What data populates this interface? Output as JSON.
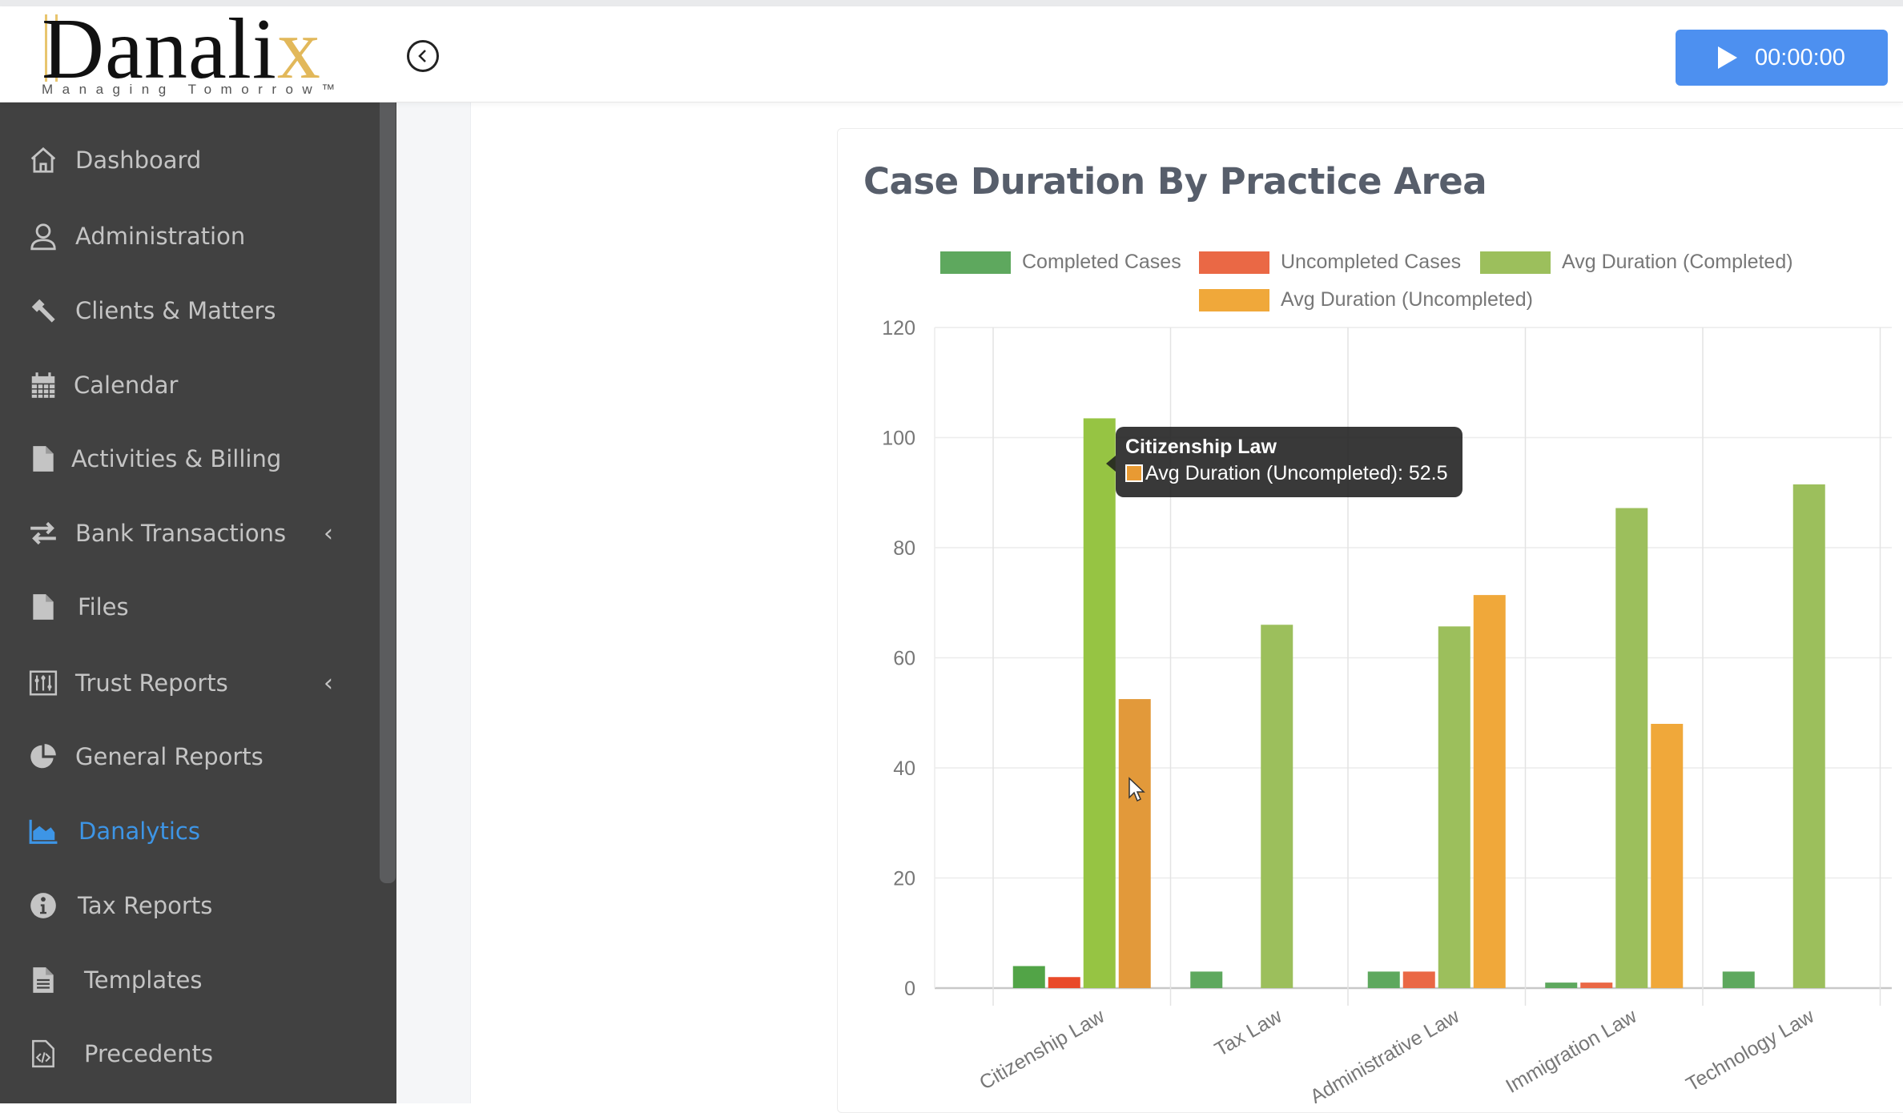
{
  "header": {
    "logo_text": "Danali",
    "logo_accent": "x",
    "logo_tagline": "Managing Tomorrow™",
    "collapse_icon": "chevron-left-circle-icon",
    "timer": {
      "icon": "play-icon",
      "value": "00:00:00",
      "color": "#4d90f0"
    }
  },
  "sidebar": {
    "items": [
      {
        "label": "Dashboard",
        "icon": "home-icon"
      },
      {
        "label": "Administration",
        "icon": "user-icon"
      },
      {
        "label": "Clients & Matters",
        "icon": "gavel-icon"
      },
      {
        "label": "Calendar",
        "icon": "calendar-icon"
      },
      {
        "label": "Activities & Billing",
        "icon": "file-icon"
      },
      {
        "label": "Bank Transactions",
        "icon": "exchange-icon",
        "chevron": "‹"
      },
      {
        "label": "Files",
        "icon": "file-icon"
      },
      {
        "label": "Trust Reports",
        "icon": "sliders-icon",
        "chevron": "‹"
      },
      {
        "label": "General Reports",
        "icon": "pie-chart-icon"
      },
      {
        "label": "Danalytics",
        "icon": "area-chart-icon",
        "active": true
      },
      {
        "label": "Tax Reports",
        "icon": "info-icon"
      },
      {
        "label": "Templates",
        "icon": "file-text-icon"
      },
      {
        "label": "Precedents",
        "icon": "file-code-icon"
      }
    ],
    "active_color": "#3d95e6"
  },
  "chart_data": {
    "type": "bar",
    "title": "Case Duration By Practice Area",
    "xlabel": "",
    "ylabel": "",
    "ylim": [
      0,
      120
    ],
    "yticks": [
      0,
      20,
      40,
      60,
      80,
      100,
      120
    ],
    "grid": true,
    "legend_position": "top",
    "categories": [
      "Citizenship Law",
      "Tax Law",
      "Administrative Law",
      "Immigration Law",
      "Technology Law"
    ],
    "series": [
      {
        "name": "Completed Cases",
        "color": "#5ea85e",
        "values": [
          4,
          3,
          3,
          1,
          3
        ]
      },
      {
        "name": "Uncompleted Cases",
        "color": "#ea6845",
        "values": [
          2,
          0,
          3,
          1,
          0
        ]
      },
      {
        "name": "Avg Duration (Completed)",
        "color": "#9cbf5c",
        "values": [
          103.5,
          66,
          65.7,
          87.2,
          91.5
        ]
      },
      {
        "name": "Avg Duration (Uncompleted)",
        "color": "#f0a83a",
        "values": [
          52.5,
          0,
          71.4,
          48,
          0
        ]
      }
    ],
    "highlight": {
      "category_index": 0,
      "series_index": 3,
      "colors": {
        "completed": "#52a447",
        "uncompleted": "#e94a2a",
        "avg_completed": "#96c443",
        "avg_uncompleted": "#e2993a"
      }
    },
    "tooltip": {
      "title": "Citizenship Law",
      "label": "Avg Duration (Uncompleted): 52.5"
    }
  }
}
